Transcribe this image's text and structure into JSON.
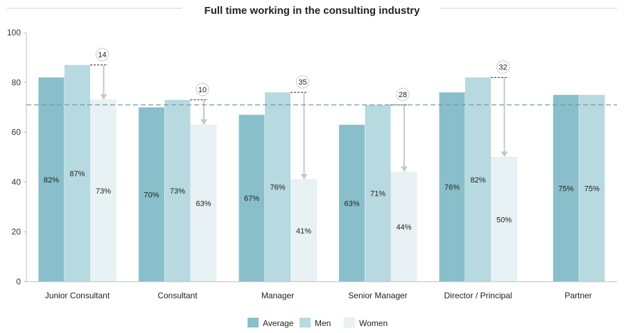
{
  "chart_data": {
    "type": "bar",
    "title": "Full time working in the consulting industry",
    "categories": [
      "Junior Consultant",
      "Consultant",
      "Manager",
      "Senior Manager",
      "Director / Principal",
      "Partner"
    ],
    "series": [
      {
        "name": "Average",
        "values": [
          82,
          70,
          67,
          63,
          76,
          75
        ],
        "labels": [
          "82%",
          "70%",
          "67%",
          "63%",
          "76%",
          "75%"
        ]
      },
      {
        "name": "Men",
        "values": [
          87,
          73,
          76,
          71,
          82,
          75
        ],
        "labels": [
          "87%",
          "73%",
          "76%",
          "71%",
          "82%",
          "75%"
        ]
      },
      {
        "name": "Women",
        "values": [
          73,
          63,
          41,
          44,
          50,
          null
        ],
        "labels": [
          "73%",
          "63%",
          "41%",
          "44%",
          "50%",
          ""
        ]
      }
    ],
    "gap_annotations": [
      "14",
      "10",
      "35",
      "28",
      "32",
      ""
    ],
    "reference_line": 71,
    "ylim": [
      0,
      100
    ],
    "yticks": [
      0,
      20,
      40,
      60,
      80,
      100
    ],
    "grid": false,
    "legend_position": "bottom",
    "colors": {
      "Average": "#88bfca",
      "Men": "#b7d9e0",
      "Women": "#e8f1f3",
      "reference": "#6f9aa8",
      "arrow": "#c8c8c8"
    }
  }
}
